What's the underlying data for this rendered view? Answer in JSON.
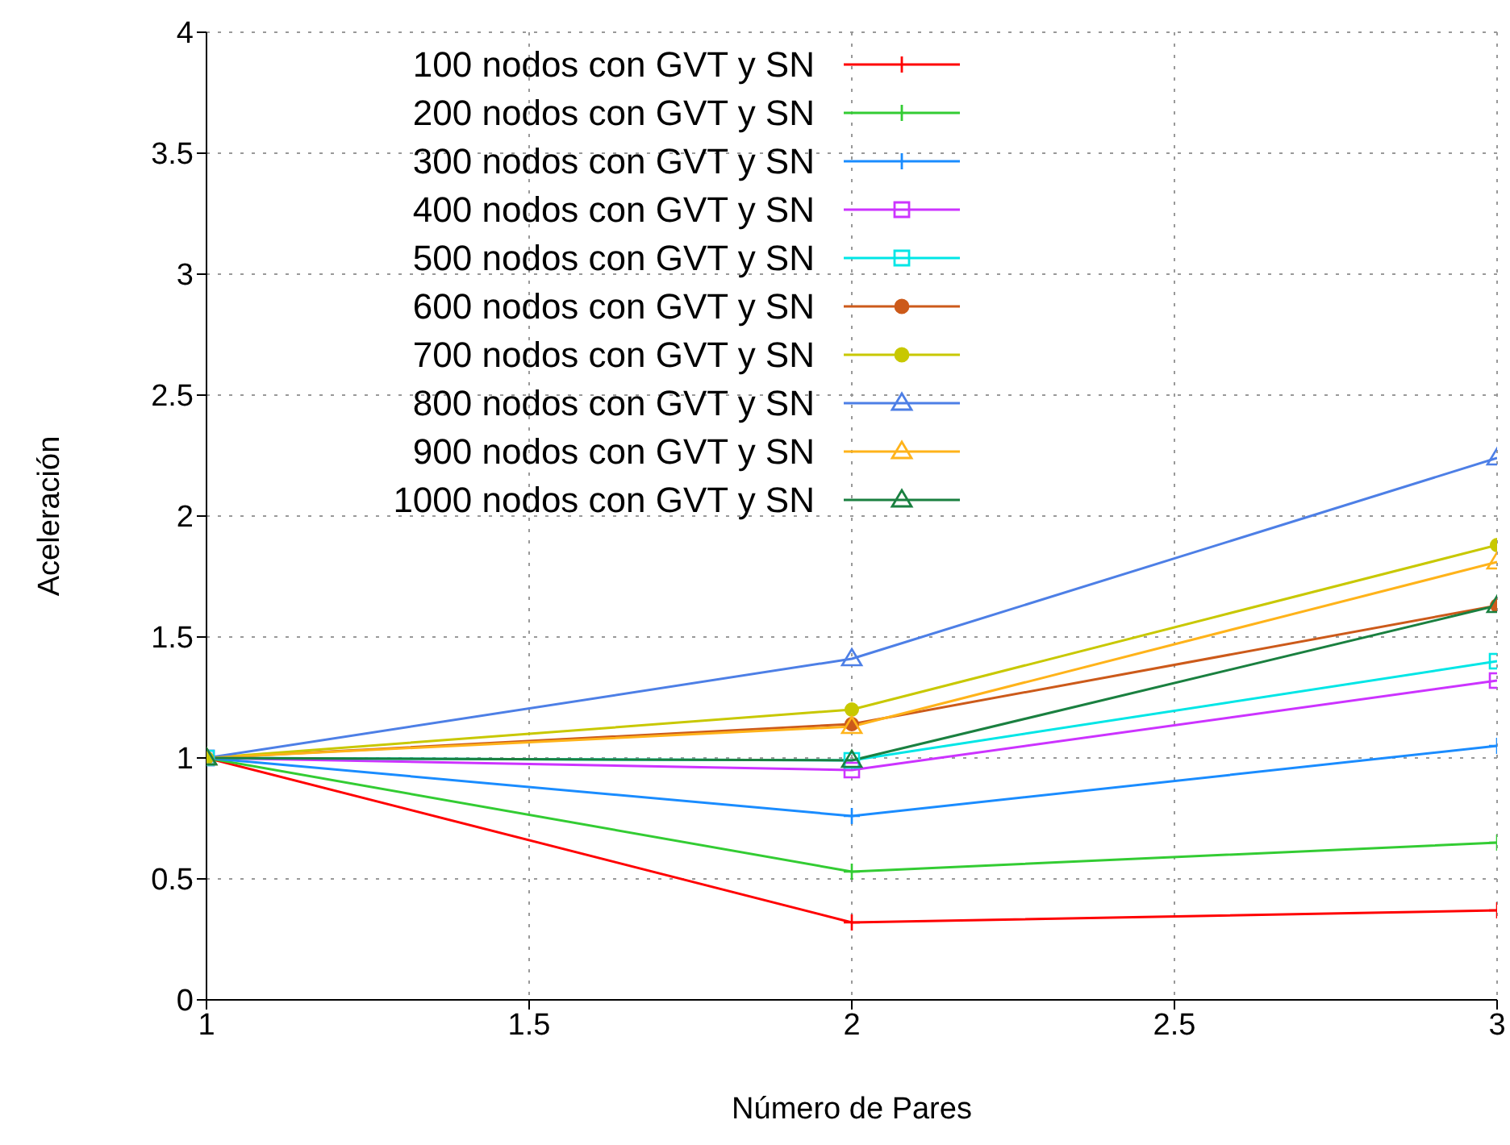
{
  "chart_data": {
    "type": "line",
    "xlabel": "Número de Pares",
    "ylabel": "Aceleración",
    "x": [
      1,
      2,
      3
    ],
    "xlim": [
      1,
      3
    ],
    "xticks": [
      1,
      1.5,
      2,
      2.5,
      3
    ],
    "ylim": [
      0,
      4
    ],
    "yticks": [
      0,
      0.5,
      1,
      1.5,
      2,
      2.5,
      3,
      3.5,
      4
    ],
    "grid": true,
    "legend": "top left",
    "series": [
      {
        "name": "100 nodos con GVT y SN",
        "color": "#ff0000",
        "marker": "cross",
        "values": [
          1,
          0.32,
          0.37
        ]
      },
      {
        "name": "200 nodos con GVT y SN",
        "color": "#33cc33",
        "marker": "cross",
        "values": [
          1,
          0.53,
          0.65
        ]
      },
      {
        "name": "300 nodos con GVT y SN",
        "color": "#1a8cff",
        "marker": "cross",
        "values": [
          1,
          0.76,
          1.05
        ]
      },
      {
        "name": "400 nodos con GVT y SN",
        "color": "#cc33ff",
        "marker": "square",
        "values": [
          1,
          0.95,
          1.32
        ]
      },
      {
        "name": "500 nodos con GVT y SN",
        "color": "#00e6e6",
        "marker": "square",
        "values": [
          1,
          0.99,
          1.4
        ]
      },
      {
        "name": "600 nodos con GVT y SN",
        "color": "#cc5a1a",
        "marker": "circle",
        "values": [
          1,
          1.14,
          1.63
        ]
      },
      {
        "name": "700 nodos con GVT y SN",
        "color": "#c8c800",
        "marker": "circle",
        "values": [
          1,
          1.2,
          1.88
        ]
      },
      {
        "name": "800 nodos con GVT y SN",
        "color": "#4d7fe6",
        "marker": "triangle",
        "values": [
          1,
          1.41,
          2.24
        ]
      },
      {
        "name": "900 nodos con GVT y SN",
        "color": "#ffb31a",
        "marker": "triangle",
        "values": [
          1,
          1.13,
          1.81
        ]
      },
      {
        "name": "1000 nodos con GVT y SN",
        "color": "#1a8040",
        "marker": "triangle",
        "values": [
          1,
          0.99,
          1.63
        ]
      }
    ]
  }
}
